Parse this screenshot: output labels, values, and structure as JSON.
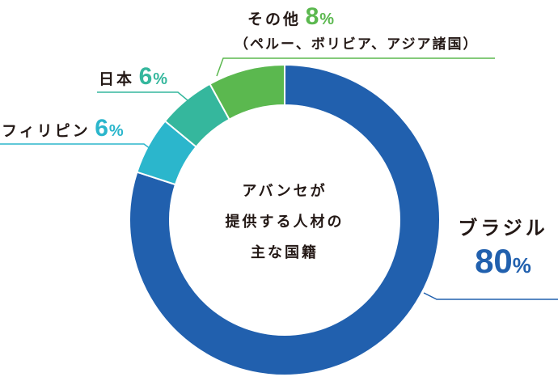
{
  "chart_data": {
    "type": "pie",
    "variant": "donut",
    "title": "アバンセが提供する人材の主な国籍",
    "categories": [
      "ブラジル",
      "フィリピン",
      "日本",
      "その他"
    ],
    "values": [
      80,
      6,
      6,
      8
    ],
    "unit": "%",
    "colors": [
      "#2160ae",
      "#2bb6cc",
      "#35b79d",
      "#5bb84f"
    ],
    "start_angle": "12 o'clock",
    "direction": "clockwise",
    "annotations": [
      "その他：ペルー、ボリビア、アジア諸国"
    ]
  },
  "center": {
    "line1": "アバンセが",
    "line2": "提供する人材の",
    "line3": "主な国籍"
  },
  "labels": {
    "brazil": {
      "name": "ブラジル",
      "value": "80",
      "sign": "%",
      "color": "#2160ae"
    },
    "philippines": {
      "name": "フィリピン",
      "value": "6",
      "sign": "%",
      "color": "#2bb6cc"
    },
    "japan": {
      "name": "日本",
      "value": "6",
      "sign": "%",
      "color": "#35b79d"
    },
    "other": {
      "name": "その他",
      "value": "8",
      "sign": "%",
      "color": "#5bb84f",
      "note": "（ペルー、ボリビア、アジア諸国）"
    }
  }
}
